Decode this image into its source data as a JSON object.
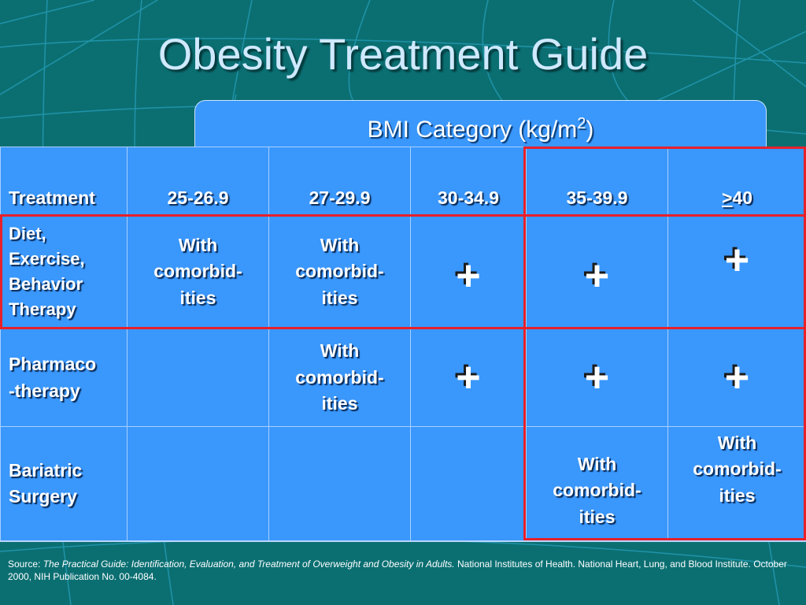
{
  "title": "Obesity Treatment Guide",
  "bmi_header": {
    "label": "BMI Category (kg/m",
    "superscript": "2",
    "suffix": ")"
  },
  "columns": {
    "treatment": "Treatment",
    "c1": "25-26.9",
    "c2": "27-29.9",
    "c3": "30-34.9",
    "c4": "35-39.9",
    "c5_symbol": ">",
    "c5_value": "40"
  },
  "rows": {
    "diet": {
      "label_lines": [
        "Diet,",
        "Exercise,",
        "Behavior",
        "Therapy"
      ],
      "c1": [
        "With",
        "comorbid-",
        "ities"
      ],
      "c2": [
        "With",
        "comorbid-",
        "ities"
      ],
      "c3": "+",
      "c4": "+",
      "c5": "+"
    },
    "pharm": {
      "label_lines": [
        "Pharmaco",
        "-therapy"
      ],
      "c2": [
        "With",
        "comorbid-",
        "ities"
      ],
      "c3": "+",
      "c4": "+",
      "c5": "+"
    },
    "bariatric": {
      "label_lines": [
        "Bariatric",
        "Surgery"
      ],
      "c4": [
        "With",
        "comorbid-",
        "ities"
      ],
      "c5": [
        "With",
        "comorbid-",
        "ities"
      ]
    }
  },
  "source": {
    "prefix": "Source: ",
    "work": "The Practical Guide: Identification, Evaluation, and Treatment of Overweight and Obesity in Adults.",
    "rest": " National Institutes of Health. National Heart, Lung, and Blood Institute. October 2000, NIH Publication No. 00-4084."
  },
  "colors": {
    "background": "#0b6f72",
    "table": "#3a97fb",
    "highlight": "#e8202a"
  }
}
